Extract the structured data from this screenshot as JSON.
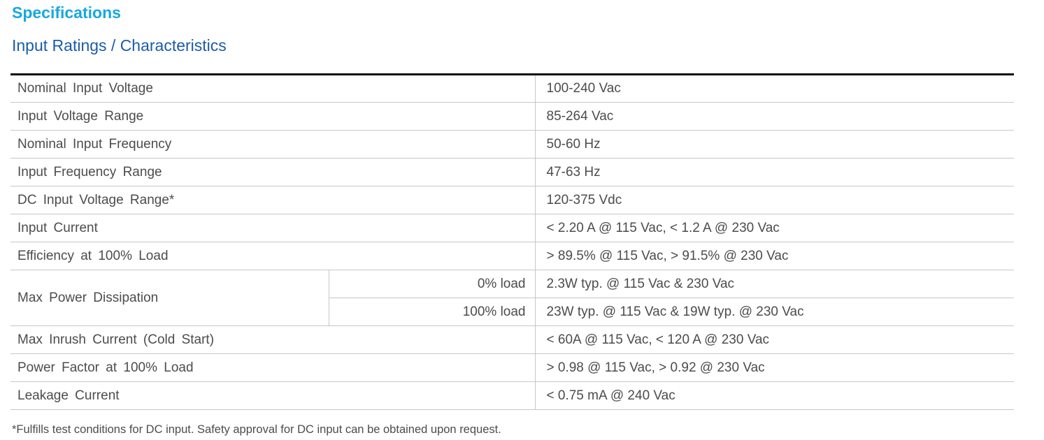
{
  "page": {
    "title": "Specifications",
    "subtitle": "Input Ratings / Characteristics",
    "footnote": "*Fulfills test conditions for DC input. Safety approval for DC input can be obtained upon request.",
    "colors": {
      "title": "#18a7e2",
      "subtitle": "#1b5ca9",
      "body_text": "#4c4c4c",
      "row_line": "#c7c7c7",
      "table_top_border": "#0b0b0b"
    }
  },
  "table": {
    "rows": [
      {
        "label": "Nominal Input Voltage",
        "value": "100-240 Vac"
      },
      {
        "label": "Input Voltage Range",
        "value": "85-264 Vac"
      },
      {
        "label": "Nominal Input Frequency",
        "value": "50-60 Hz"
      },
      {
        "label": "Input Frequency Range",
        "value": "47-63 Hz"
      },
      {
        "label": "DC Input Voltage Range*",
        "value": "120-375 Vdc"
      },
      {
        "label": "Input Current",
        "value": "< 2.20 A @ 115 Vac, < 1.2 A @ 230 Vac"
      },
      {
        "label": "Efficiency at 100% Load",
        "value": "> 89.5% @ 115 Vac, > 91.5% @ 230 Vac"
      },
      {
        "label": "Max Power Dissipation",
        "subrows": [
          {
            "condition": "0% load",
            "value": "2.3W typ. @ 115 Vac & 230 Vac"
          },
          {
            "condition": "100% load",
            "value": "23W typ. @ 115 Vac & 19W typ. @ 230 Vac"
          }
        ]
      },
      {
        "label": "Max Inrush Current (Cold Start)",
        "value": "< 60A @ 115 Vac, < 120 A @ 230 Vac"
      },
      {
        "label": "Power Factor at 100% Load",
        "value": "> 0.98 @ 115 Vac, > 0.92 @ 230 Vac"
      },
      {
        "label": "Leakage Current",
        "value": "< 0.75 mA @ 240 Vac"
      }
    ]
  }
}
